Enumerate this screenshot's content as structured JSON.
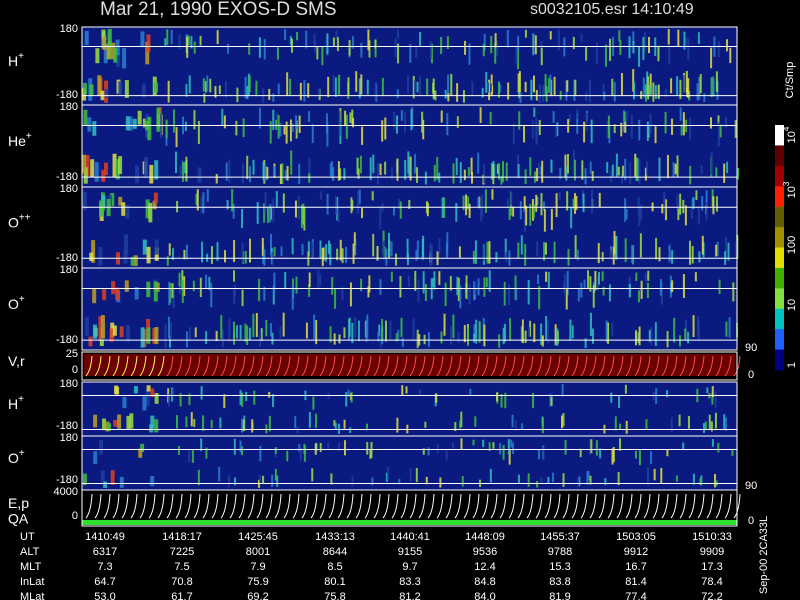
{
  "header": {
    "title": "Mar 21, 1990   EXOS-D SMS",
    "file_time": "s0032105.esr  14:10:49"
  },
  "panels": [
    {
      "label": "H",
      "sup": "+",
      "ticks": [
        "180",
        "-180"
      ]
    },
    {
      "label": "He",
      "sup": "+",
      "ticks": [
        "180",
        "-180"
      ]
    },
    {
      "label": "O",
      "sup": "++",
      "ticks": [
        "180",
        "-180"
      ]
    },
    {
      "label": "O",
      "sup": "+",
      "ticks": [
        "180",
        "-180"
      ]
    },
    {
      "label": "V,r",
      "sup": "",
      "ticks": [
        "25",
        "0"
      ],
      "right_ticks": [
        "90",
        "0"
      ]
    },
    {
      "label": "H",
      "sup": "+",
      "ticks": [
        "180",
        "-180"
      ]
    },
    {
      "label": "O",
      "sup": "+",
      "ticks": [
        "180",
        "-180"
      ]
    },
    {
      "label": "E,p",
      "sup": "",
      "label2": "QA",
      "ticks": [
        "4000",
        "0"
      ],
      "right_ticks": [
        "90",
        "0"
      ]
    }
  ],
  "colorbar": {
    "unit": "Ct/Smp",
    "labels": [
      {
        "base": "10",
        "exp": "4"
      },
      {
        "base": "10",
        "exp": "3"
      },
      {
        "base": "100",
        "exp": ""
      },
      {
        "base": "10",
        "exp": ""
      },
      {
        "base": "1",
        "exp": ""
      }
    ]
  },
  "stamp": "Sep-00  2CA33L",
  "footer": {
    "row_labels": [
      "UT",
      "ALT",
      "MLT",
      "InLat",
      "MLat"
    ],
    "rows": [
      [
        "1410:49",
        "1418:17",
        "1425:45",
        "1433:13",
        "1440:41",
        "1448:09",
        "1455:37",
        "1503:05",
        "1510:33"
      ],
      [
        "6317",
        "7225",
        "8001",
        "8644",
        "9155",
        "9536",
        "9788",
        "9912",
        "9909"
      ],
      [
        "7.3",
        "7.5",
        "7.9",
        "8.5",
        "9.7",
        "12.4",
        "15.3",
        "16.7",
        "17.3"
      ],
      [
        "64.7",
        "70.8",
        "75.9",
        "80.1",
        "83.3",
        "84.8",
        "83.8",
        "81.4",
        "78.4"
      ],
      [
        "53.0",
        "61.7",
        "69.2",
        "75.8",
        "81.2",
        "84.0",
        "81.9",
        "77.4",
        "72.2"
      ]
    ]
  }
}
